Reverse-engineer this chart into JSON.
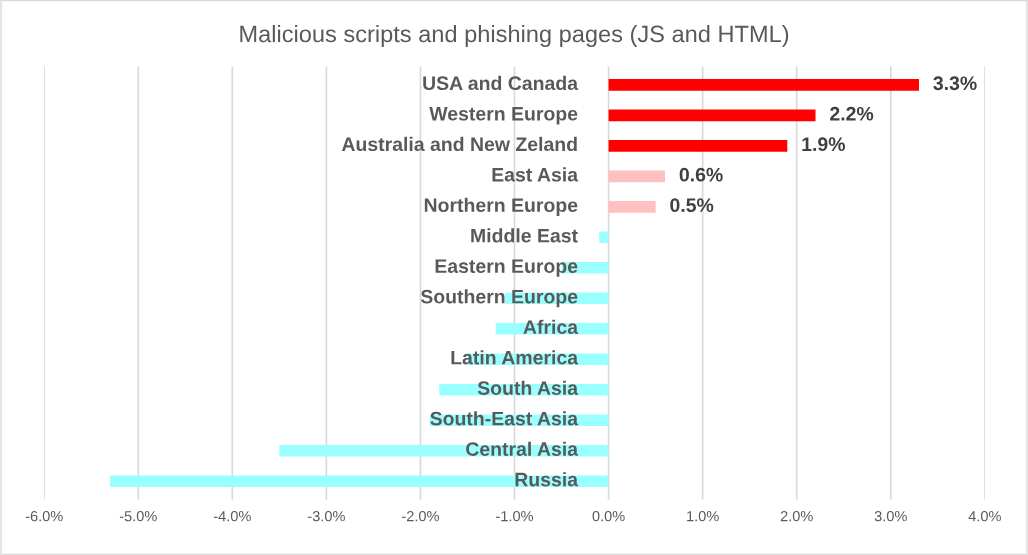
{
  "chart_data": {
    "type": "bar",
    "orientation": "horizontal",
    "title": "Malicious scripts and phishing pages (JS and HTML)",
    "categories": [
      "USA and Canada",
      "Western Europe",
      "Australia and New Zeland",
      "East Asia",
      "Northern Europe",
      "Middle East",
      "Eastern Europe",
      "Southern Europe",
      "Africa",
      "Latin America",
      "South Asia",
      "South-East Asia",
      "Central Asia",
      "Russia"
    ],
    "values": [
      3.3,
      2.2,
      1.9,
      0.6,
      0.5,
      -0.1,
      -0.5,
      -1.1,
      -1.2,
      -1.5,
      -1.8,
      -1.9,
      -3.5,
      -5.3
    ],
    "colors": [
      "#ff0000",
      "#ff0000",
      "#ff0000",
      "#ffc0c0",
      "#ffc0c0",
      "#99ffff",
      "#99ffff",
      "#99ffff",
      "#99ffff",
      "#99ffff",
      "#99ffff",
      "#99ffff",
      "#99ffff",
      "#99ffff"
    ],
    "value_labels": [
      "3.3%",
      "2.2%",
      "1.9%",
      "0.6%",
      "0.5%",
      null,
      null,
      null,
      null,
      null,
      null,
      null,
      null,
      null
    ],
    "xlim": [
      -6,
      4
    ],
    "xticks": [
      {
        "value": -6,
        "label": "-6.0%"
      },
      {
        "value": -5,
        "label": "-5.0%"
      },
      {
        "value": -4,
        "label": "-4.0%"
      },
      {
        "value": -3,
        "label": "-3.0%"
      },
      {
        "value": -2,
        "label": "-2.0%"
      },
      {
        "value": -1,
        "label": "-1.0%"
      },
      {
        "value": 0,
        "label": "0.0%"
      },
      {
        "value": 1,
        "label": "1.0%"
      },
      {
        "value": 2,
        "label": "2.0%"
      },
      {
        "value": 3,
        "label": "3.0%"
      },
      {
        "value": 4,
        "label": "4.0%"
      }
    ],
    "grid": "x",
    "legend": false
  }
}
